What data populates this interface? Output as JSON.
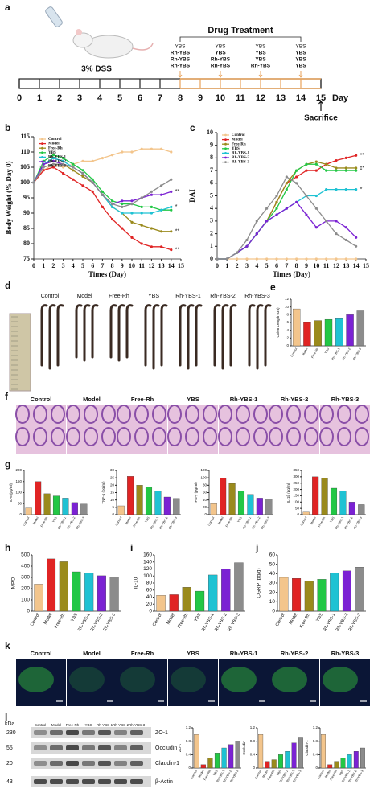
{
  "panel_labels": [
    "a",
    "b",
    "c",
    "d",
    "e",
    "f",
    "g",
    "h",
    "i",
    "j",
    "k",
    "l"
  ],
  "timeline": {
    "days": [
      0,
      1,
      2,
      3,
      4,
      5,
      6,
      7,
      8,
      9,
      10,
      11,
      12,
      13,
      14,
      15
    ],
    "unit": "Day",
    "dss": "3% DSS",
    "treatment_title": "Drug Treatment",
    "treatment_days": [
      8,
      10,
      12,
      14
    ],
    "groups": [
      [
        "YBS",
        "Rh-YBS",
        "Rh-YBS",
        "Rh-YBS"
      ],
      [
        "YBS",
        "YBS",
        "Rh-YBS",
        "Rh-YBS"
      ],
      [
        "YBS",
        "YBS",
        "YBS",
        "Rh-YBS"
      ],
      [
        "YBS",
        "YBS",
        "YBS",
        "YBS"
      ]
    ],
    "end_label": "Sacrifice"
  },
  "image_panels": {
    "d": [
      "Control",
      "Model",
      "Free-Rh",
      "YBS",
      "Rh-YBS-1",
      "Rh-YBS-2",
      "Rh-YBS-3"
    ],
    "f": [
      "Control",
      "Model",
      "Free-Rh",
      "YBS",
      "Rh-YBS-1",
      "Rh-YBS-2",
      "Rh-YBS-3"
    ],
    "k": [
      "Control",
      "Model",
      "Free-Rh",
      "YBS",
      "Rh-YBS-1",
      "Rh-YBS-2",
      "Rh-YBS-3"
    ]
  },
  "western_blot": {
    "unit": "kDa",
    "markers": [
      230,
      55,
      20,
      43
    ],
    "bands": [
      "ZO-1",
      "Occludin",
      "Claudin-1",
      "β-Actin"
    ],
    "lanes": [
      "Control",
      "Model",
      "Free-Rh",
      "YBS",
      "Rh-YBS-1",
      "Rh-YBS-2",
      "Rh-YBS-3"
    ]
  },
  "chart_data": [
    {
      "type": "line",
      "ylabel": "Body Weight (% Day 0)",
      "xlabel": "Times (Day)",
      "legend": "upper left",
      "x": [
        0,
        1,
        2,
        3,
        4,
        5,
        6,
        7,
        8,
        9,
        10,
        11,
        12,
        13,
        14
      ],
      "xlim": [
        0,
        15
      ],
      "xticks": [
        0,
        1,
        2,
        3,
        4,
        5,
        6,
        7,
        8,
        9,
        10,
        11,
        12,
        13,
        14,
        15
      ],
      "ylim": [
        75,
        115
      ],
      "yticks": [
        75,
        80,
        85,
        90,
        95,
        100,
        105,
        110,
        115
      ],
      "series": [
        {
          "name": "Control",
          "color": "#f3c58c",
          "values": [
            100,
            104,
            106,
            105,
            106,
            107,
            107,
            108,
            109,
            110,
            110,
            111,
            111,
            111,
            110
          ]
        },
        {
          "name": "Model",
          "color": "#e02424",
          "values": [
            100,
            104,
            105,
            103,
            101,
            99,
            97,
            92,
            88,
            85,
            82,
            80,
            79,
            79,
            78
          ],
          "annotation": "**"
        },
        {
          "name": "Free-Rh",
          "color": "#9a8a1c",
          "values": [
            100,
            106,
            107,
            106,
            104,
            102,
            100,
            96,
            92,
            90,
            87,
            86,
            85,
            84,
            84
          ],
          "annotation": "**"
        },
        {
          "name": "YBS",
          "color": "#22c745",
          "values": [
            100,
            107,
            109,
            108,
            106,
            104,
            101,
            97,
            94,
            93,
            93,
            92,
            92,
            91,
            91
          ]
        },
        {
          "name": "Rh-YBS-1",
          "color": "#1fc2d3",
          "values": [
            100,
            106,
            108,
            107,
            105,
            103,
            100,
            96,
            92,
            90,
            90,
            90,
            90,
            91,
            92
          ],
          "annotation": "*"
        },
        {
          "name": "Rh-YBS-2",
          "color": "#7b22d3",
          "values": [
            100,
            106,
            107,
            106,
            105,
            103,
            100,
            96,
            93,
            94,
            94,
            95,
            96,
            96,
            97
          ],
          "annotation": "**"
        },
        {
          "name": "Rh-YBS-3",
          "color": "#8c8c8c",
          "values": [
            100,
            105,
            106,
            106,
            105,
            103,
            100,
            96,
            93,
            92,
            93,
            95,
            97,
            99,
            101
          ]
        }
      ]
    },
    {
      "type": "line",
      "ylabel": "DAI",
      "xlabel": "Times (Day)",
      "legend": "upper left",
      "x": [
        0,
        1,
        2,
        3,
        4,
        5,
        6,
        7,
        8,
        9,
        10,
        11,
        12,
        13,
        14
      ],
      "xlim": [
        0,
        15
      ],
      "xticks": [
        0,
        1,
        2,
        3,
        4,
        5,
        6,
        7,
        8,
        9,
        10,
        11,
        12,
        13,
        14,
        15
      ],
      "ylim": [
        0,
        10
      ],
      "yticks": [
        0,
        1,
        2,
        3,
        4,
        5,
        6,
        7,
        8,
        9,
        10
      ],
      "series": [
        {
          "name": "Control",
          "color": "#f3c58c",
          "values": [
            0,
            0,
            0,
            0,
            0,
            0,
            0,
            0,
            0,
            0,
            0,
            0,
            0,
            0,
            0
          ]
        },
        {
          "name": "Model",
          "color": "#e02424",
          "values": [
            0,
            0,
            0.5,
            1,
            2,
            3,
            4.5,
            6,
            6.5,
            7,
            7,
            7.5,
            7.8,
            8,
            8.2
          ],
          "annotation": "**"
        },
        {
          "name": "Free-Rh",
          "color": "#9a8a1c",
          "values": [
            0,
            0,
            0.5,
            1,
            2,
            3,
            4.5,
            6,
            7,
            7.5,
            7.7,
            7.5,
            7.2,
            7.2,
            7.2
          ],
          "annotation": "**"
        },
        {
          "name": "YBS",
          "color": "#22c745",
          "values": [
            0,
            0,
            0.5,
            1,
            2,
            3,
            4,
            5.5,
            7,
            7.5,
            7.5,
            7,
            7,
            7,
            7
          ],
          "annotation": "*"
        },
        {
          "name": "Rh-YBS-1",
          "color": "#1fc2d3",
          "values": [
            0,
            0,
            0.5,
            1,
            2,
            3,
            3.5,
            4,
            4.5,
            5,
            5,
            5.5,
            5.5,
            5.5,
            5.5
          ],
          "annotation": "*"
        },
        {
          "name": "Rh-YBS-2",
          "color": "#7b22d3",
          "values": [
            0,
            0,
            0.5,
            1,
            2,
            3,
            3.5,
            4,
            4.5,
            3.5,
            2.5,
            3,
            3,
            2.5,
            1.7
          ]
        },
        {
          "name": "Rh-YBS-3",
          "color": "#8c8c8c",
          "values": [
            0,
            0,
            0.5,
            1.5,
            3,
            4,
            5,
            6.5,
            6,
            5,
            4,
            3,
            2,
            1.5,
            1
          ]
        }
      ]
    },
    {
      "type": "bar",
      "ylabel": "Colon Length (cm)",
      "categories": [
        "Control",
        "Model",
        "Free-Rh",
        "YBS",
        "Rh-YBS-1",
        "Rh-YBS-2",
        "Rh-YBS-3"
      ],
      "values": [
        9.5,
        6,
        6.5,
        6.8,
        7,
        8,
        9
      ],
      "colors": [
        "#f3c58c",
        "#e02424",
        "#9a8a1c",
        "#22c745",
        "#1fc2d3",
        "#7b22d3",
        "#8c8c8c"
      ],
      "ylim": [
        0,
        12
      ],
      "yticks": [
        0,
        2,
        4,
        6,
        8,
        10,
        12
      ]
    },
    {
      "type": "bar",
      "ylabel": "IL-6 (pg/ml)",
      "categories": [
        "Control",
        "Model",
        "Free-Rh",
        "YBS",
        "Rh-YBS-1",
        "Rh-YBS-2",
        "Rh-YBS-3"
      ],
      "values": [
        30,
        150,
        95,
        85,
        75,
        55,
        48
      ],
      "colors": [
        "#f3c58c",
        "#e02424",
        "#9a8a1c",
        "#22c745",
        "#1fc2d3",
        "#7b22d3",
        "#8c8c8c"
      ],
      "ylim": [
        0,
        200
      ],
      "yticks": [
        0,
        50,
        100,
        150,
        200
      ]
    },
    {
      "type": "bar",
      "ylabel": "TNF-α (pg/ml)",
      "categories": [
        "Control",
        "Model",
        "Free-Rh",
        "YBS",
        "Rh-YBS-1",
        "Rh-YBS-2",
        "Rh-YBS-3"
      ],
      "values": [
        6,
        26,
        20,
        19,
        16,
        12,
        11
      ],
      "colors": [
        "#f3c58c",
        "#e02424",
        "#9a8a1c",
        "#22c745",
        "#1fc2d3",
        "#7b22d3",
        "#8c8c8c"
      ],
      "ylim": [
        0,
        30
      ],
      "yticks": [
        0,
        5,
        10,
        15,
        20,
        25,
        30
      ]
    },
    {
      "type": "bar",
      "ylabel": "IFN-γ (pg/ml)",
      "categories": [
        "Control",
        "Model",
        "Free-Rh",
        "YBS",
        "Rh-YBS-1",
        "Rh-YBS-2",
        "Rh-YBS-3"
      ],
      "values": [
        30,
        100,
        85,
        65,
        55,
        45,
        42
      ],
      "colors": [
        "#f3c58c",
        "#e02424",
        "#9a8a1c",
        "#22c745",
        "#1fc2d3",
        "#7b22d3",
        "#8c8c8c"
      ],
      "ylim": [
        0,
        120
      ],
      "yticks": [
        0,
        20,
        40,
        60,
        80,
        100,
        120
      ]
    },
    {
      "type": "bar",
      "ylabel": "IL-1β (pg/ml)",
      "categories": [
        "Control",
        "Model",
        "Free-Rh",
        "YBS",
        "Rh-YBS-1",
        "Rh-YBS-2",
        "Rh-YBS-3"
      ],
      "values": [
        20,
        300,
        290,
        210,
        190,
        100,
        80
      ],
      "colors": [
        "#f3c58c",
        "#e02424",
        "#9a8a1c",
        "#22c745",
        "#1fc2d3",
        "#7b22d3",
        "#8c8c8c"
      ],
      "ylim": [
        0,
        350
      ],
      "yticks": [
        0,
        50,
        100,
        150,
        200,
        250,
        300,
        350
      ]
    },
    {
      "type": "bar",
      "ylabel": "MPO",
      "categories": [
        "Control",
        "Model",
        "Free-Rh",
        "YBS",
        "Rh-YBS-1",
        "Rh-YBS-2",
        "Rh-YBS-3"
      ],
      "values": [
        240,
        465,
        440,
        350,
        340,
        315,
        305
      ],
      "colors": [
        "#f3c58c",
        "#e02424",
        "#9a8a1c",
        "#22c745",
        "#1fc2d3",
        "#7b22d3",
        "#8c8c8c"
      ],
      "ylim": [
        0,
        500
      ],
      "yticks": [
        0,
        100,
        200,
        300,
        400,
        500
      ]
    },
    {
      "type": "bar",
      "ylabel": "IL-10",
      "categories": [
        "Control",
        "Model",
        "Free-Rh",
        "YBS",
        "Rh-YBS-1",
        "Rh-YBS-2",
        "Rh-YBS-3"
      ],
      "values": [
        45,
        47,
        68,
        57,
        103,
        120,
        138
      ],
      "colors": [
        "#f3c58c",
        "#e02424",
        "#9a8a1c",
        "#22c745",
        "#1fc2d3",
        "#7b22d3",
        "#8c8c8c"
      ],
      "ylim": [
        0,
        160
      ],
      "yticks": [
        0,
        20,
        40,
        60,
        80,
        100,
        120,
        140,
        160
      ]
    },
    {
      "type": "bar",
      "ylabel": "CGRP (pg/g)",
      "categories": [
        "Control",
        "Model",
        "Free-Rh",
        "YBS",
        "Rh-YBS-1",
        "Rh-YBS-2",
        "Rh-YBS-3"
      ],
      "values": [
        36,
        35,
        32,
        34,
        41,
        43,
        47
      ],
      "colors": [
        "#f3c58c",
        "#e02424",
        "#9a8a1c",
        "#22c745",
        "#1fc2d3",
        "#7b22d3",
        "#8c8c8c"
      ],
      "ylim": [
        0,
        60
      ],
      "yticks": [
        0,
        10,
        20,
        30,
        40,
        50,
        60
      ]
    },
    {
      "type": "bar",
      "ylabel": "ZO-1",
      "categories": [
        "Control",
        "Model",
        "Free-Rh",
        "YBS",
        "Rh-YBS-1",
        "Rh-YBS-2",
        "Rh-YBS-3"
      ],
      "values": [
        1,
        0.1,
        0.3,
        0.45,
        0.6,
        0.7,
        0.8
      ],
      "colors": [
        "#f3c58c",
        "#e02424",
        "#9a8a1c",
        "#22c745",
        "#1fc2d3",
        "#7b22d3",
        "#8c8c8c"
      ],
      "ylim": [
        0,
        1.2
      ],
      "yticks": [
        0,
        0.4,
        0.8,
        1.2
      ]
    },
    {
      "type": "bar",
      "ylabel": "Occludin",
      "categories": [
        "Control",
        "Model",
        "Free-Rh",
        "YBS",
        "Rh-YBS-1",
        "Rh-YBS-2",
        "Rh-YBS-3"
      ],
      "values": [
        1,
        0.2,
        0.25,
        0.4,
        0.5,
        0.75,
        0.9
      ],
      "colors": [
        "#f3c58c",
        "#e02424",
        "#9a8a1c",
        "#22c745",
        "#1fc2d3",
        "#7b22d3",
        "#8c8c8c"
      ],
      "ylim": [
        0,
        1.2
      ],
      "yticks": [
        0,
        0.4,
        0.8,
        1.2
      ]
    },
    {
      "type": "bar",
      "ylabel": "Claudin-1",
      "categories": [
        "Control",
        "Model",
        "Free-Rh",
        "YBS",
        "Rh-YBS-1",
        "Rh-YBS-2",
        "Rh-YBS-3"
      ],
      "values": [
        1,
        0.1,
        0.2,
        0.3,
        0.4,
        0.5,
        0.6
      ],
      "colors": [
        "#f3c58c",
        "#e02424",
        "#9a8a1c",
        "#22c745",
        "#1fc2d3",
        "#7b22d3",
        "#8c8c8c"
      ],
      "ylim": [
        0,
        1.2
      ],
      "yticks": [
        0,
        0.4,
        0.8,
        1.2
      ]
    }
  ]
}
